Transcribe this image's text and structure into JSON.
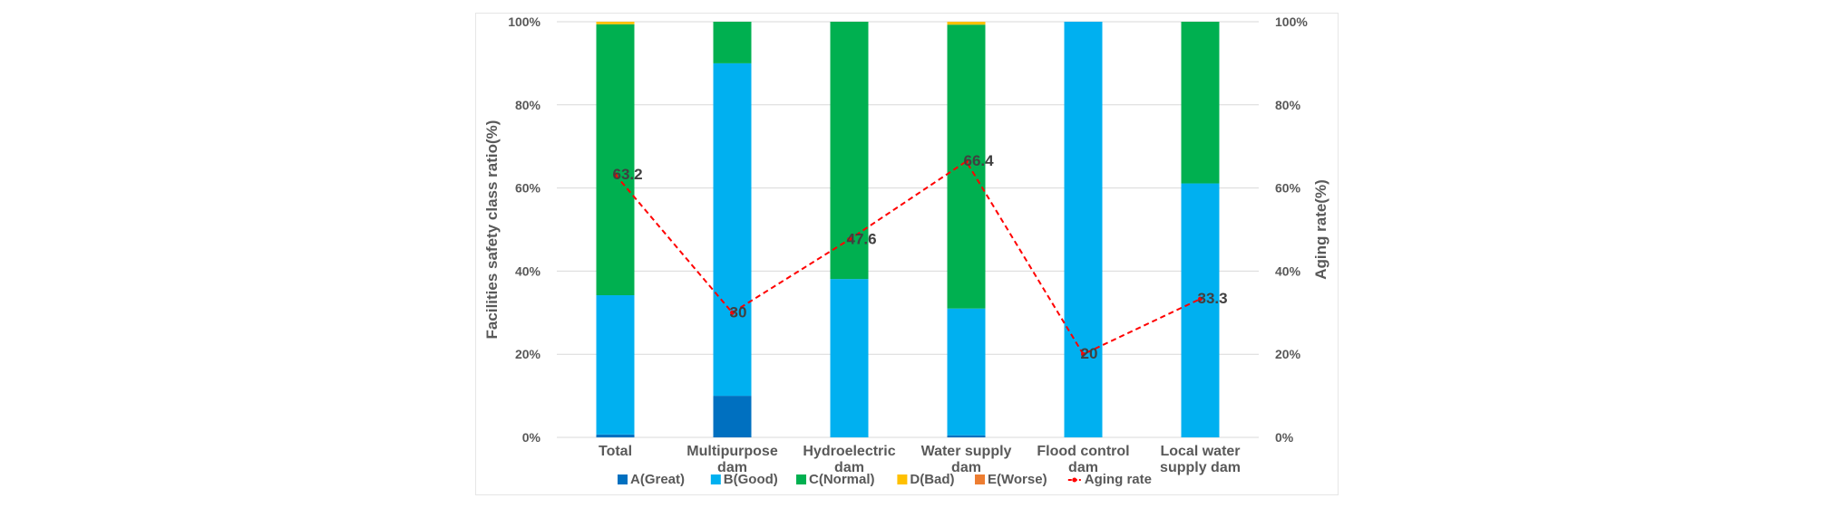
{
  "chart_data": {
    "type": "bar",
    "stacked": true,
    "categories": [
      [
        "Total"
      ],
      [
        "Multipurpose",
        "dam"
      ],
      [
        "Hydroelectric",
        "dam"
      ],
      [
        "Water supply",
        "dam"
      ],
      [
        "Flood control",
        "dam"
      ],
      [
        "Local water",
        "supply dam"
      ]
    ],
    "series": [
      {
        "name": "A(Great)",
        "color": "#0070c0",
        "values": [
          0.7,
          10,
          0,
          0.5,
          0,
          0
        ]
      },
      {
        "name": "B(Good)",
        "color": "#00b0f0",
        "values": [
          33.5,
          80,
          38.1,
          30.5,
          100,
          61.1
        ]
      },
      {
        "name": "C(Normal)",
        "color": "#00b050",
        "values": [
          65.2,
          10,
          61.9,
          68.3,
          0,
          38.9
        ]
      },
      {
        "name": "D(Bad)",
        "color": "#ffc000",
        "values": [
          0.6,
          0,
          0,
          0.7,
          0,
          0
        ]
      },
      {
        "name": "E(Worse)",
        "color": "#ed7d31",
        "values": [
          0,
          0,
          0,
          0,
          0,
          0
        ]
      }
    ],
    "line_series": {
      "name": "Aging rate",
      "color": "#ff0000",
      "style": "dashed",
      "values": [
        63.2,
        30,
        47.6,
        66.4,
        20,
        33.3
      ],
      "labels": [
        "63.2",
        "30",
        "47.6",
        "66.4",
        "20",
        "33.3"
      ]
    },
    "ylabel": "Facilities safety class ratio(%)",
    "y2label": "Aging rate(%)",
    "ylim": [
      0,
      100
    ],
    "y2lim": [
      0,
      100
    ],
    "yticks": [
      "0%",
      "20%",
      "40%",
      "60%",
      "80%",
      "100%"
    ],
    "y2ticks": [
      "0%",
      "20%",
      "40%",
      "60%",
      "80%",
      "100%"
    ],
    "grid": true,
    "legend": "bottom"
  }
}
